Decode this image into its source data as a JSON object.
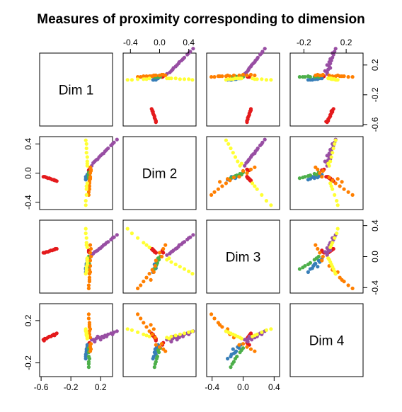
{
  "chart_data": {
    "type": "scatter",
    "title": "Measures of proximity corresponding to dimension",
    "dimensions": [
      "Dim 1",
      "Dim 2",
      "Dim 3",
      "Dim 4"
    ],
    "axes": [
      {
        "range": [
          -0.62,
          0.36
        ],
        "ticks": [
          -0.6,
          -0.2,
          0.2
        ],
        "tick_labels": [
          "-0.6",
          "-0.2",
          "0.2"
        ]
      },
      {
        "range": [
          -0.5,
          0.5
        ],
        "ticks": [
          -0.4,
          0.0,
          0.4
        ],
        "tick_labels": [
          "-0.4",
          "0.0",
          "0.4"
        ]
      },
      {
        "range": [
          -0.47,
          0.47
        ],
        "ticks": [
          -0.4,
          0.0,
          0.4
        ],
        "tick_labels": [
          "-0.4",
          "0.0",
          "0.4"
        ]
      },
      {
        "range": [
          -0.33,
          0.36
        ],
        "ticks": [
          -0.2,
          0.2
        ],
        "tick_labels": [
          "-0.2",
          "0.2"
        ]
      }
    ],
    "series": [
      {
        "color": "#E41A1C",
        "points": [
          [
            -0.57,
            -0.05,
            0.05,
            0.02
          ],
          [
            -0.55,
            -0.05,
            0.05,
            0.03
          ],
          [
            -0.53,
            -0.06,
            0.06,
            0.03
          ],
          [
            -0.51,
            -0.07,
            0.06,
            0.04
          ],
          [
            -0.49,
            -0.07,
            0.07,
            0.05
          ],
          [
            -0.47,
            -0.08,
            0.08,
            0.05
          ],
          [
            -0.45,
            -0.09,
            0.08,
            0.06
          ],
          [
            -0.43,
            -0.09,
            0.09,
            0.07
          ],
          [
            -0.41,
            -0.1,
            0.1,
            0.07
          ],
          [
            -0.39,
            -0.11,
            0.1,
            0.08
          ],
          [
            -0.56,
            -0.05,
            0.05,
            0.01
          ],
          [
            -0.42,
            -0.1,
            0.09,
            0.06
          ],
          [
            0.04,
            0.03,
            0.06,
            -0.02
          ],
          [
            0.05,
            0.05,
            0.05,
            -0.01
          ],
          [
            0.04,
            0.04,
            0.08,
            -0.03
          ]
        ]
      },
      {
        "color": "#377EB8",
        "points": [
          [
            0.02,
            -0.02,
            -0.03,
            -0.03
          ],
          [
            0.02,
            -0.03,
            -0.05,
            -0.06
          ],
          [
            0.01,
            -0.05,
            -0.09,
            -0.09
          ],
          [
            0.01,
            -0.06,
            -0.12,
            -0.11
          ],
          [
            0.0,
            -0.08,
            -0.16,
            -0.14
          ],
          [
            0.0,
            -0.09,
            -0.2,
            -0.16
          ],
          [
            0.01,
            -0.06,
            -0.13,
            -0.07
          ],
          [
            0.02,
            -0.04,
            -0.07,
            -0.05
          ],
          [
            0.01,
            -0.07,
            -0.1,
            -0.1
          ],
          [
            0.0,
            -0.05,
            -0.15,
            -0.12
          ]
        ]
      },
      {
        "color": "#4DAF4A",
        "points": [
          [
            0.04,
            0.01,
            0.0,
            -0.06
          ],
          [
            0.04,
            -0.01,
            -0.04,
            -0.1
          ],
          [
            0.04,
            -0.03,
            -0.08,
            -0.14
          ],
          [
            0.04,
            -0.05,
            -0.12,
            -0.19
          ],
          [
            0.04,
            -0.07,
            -0.16,
            -0.24
          ],
          [
            0.05,
            -0.02,
            -0.02,
            -0.08
          ],
          [
            0.05,
            -0.04,
            -0.1,
            -0.16
          ],
          [
            0.04,
            -0.06,
            -0.14,
            -0.21
          ]
        ]
      },
      {
        "color": "#984EA3",
        "points": [
          [
            0.08,
            0.1,
            0.02,
            0.02
          ],
          [
            0.1,
            0.14,
            0.04,
            0.02
          ],
          [
            0.14,
            0.18,
            0.07,
            0.03
          ],
          [
            0.18,
            0.22,
            0.1,
            0.04
          ],
          [
            0.22,
            0.26,
            0.13,
            0.05
          ],
          [
            0.26,
            0.3,
            0.16,
            0.06
          ],
          [
            0.3,
            0.34,
            0.19,
            0.07
          ],
          [
            0.34,
            0.38,
            0.22,
            0.08
          ],
          [
            0.38,
            0.42,
            0.25,
            0.09
          ],
          [
            0.42,
            0.46,
            0.28,
            0.1
          ],
          [
            0.12,
            0.16,
            0.06,
            0.0
          ],
          [
            0.2,
            0.24,
            0.11,
            0.02
          ],
          [
            0.28,
            0.32,
            0.18,
            0.05
          ],
          [
            0.36,
            0.4,
            0.24,
            0.07
          ],
          [
            0.16,
            0.19,
            0.08,
            0.05
          ],
          [
            0.24,
            0.27,
            0.15,
            0.04
          ]
        ]
      },
      {
        "color": "#FF7F00",
        "points": [
          [
            0.06,
            -0.06,
            -0.12,
            0.04
          ],
          [
            0.05,
            -0.1,
            -0.17,
            0.07
          ],
          [
            0.05,
            -0.14,
            -0.22,
            0.1
          ],
          [
            0.05,
            -0.18,
            -0.27,
            0.14
          ],
          [
            0.05,
            -0.22,
            -0.32,
            0.18
          ],
          [
            0.04,
            -0.26,
            -0.37,
            0.22
          ],
          [
            0.04,
            -0.3,
            -0.41,
            0.26
          ],
          [
            0.06,
            -0.05,
            -0.05,
            -0.03
          ],
          [
            0.06,
            0.0,
            0.05,
            -0.05
          ],
          [
            0.07,
            0.05,
            0.1,
            -0.07
          ],
          [
            0.06,
            0.08,
            0.15,
            -0.09
          ],
          [
            0.06,
            -0.08,
            -0.2,
            0.12
          ],
          [
            0.05,
            -0.12,
            -0.3,
            0.16
          ],
          [
            0.07,
            0.03,
            0.0,
            -0.02
          ]
        ]
      },
      {
        "color": "#FFFF33",
        "points": [
          [
            0.02,
            0.1,
            -0.04,
            0.04
          ],
          [
            0.02,
            0.16,
            -0.07,
            0.05
          ],
          [
            0.02,
            0.22,
            -0.1,
            0.06
          ],
          [
            0.01,
            0.28,
            -0.13,
            0.07
          ],
          [
            0.01,
            0.34,
            -0.16,
            0.08
          ],
          [
            0.01,
            0.4,
            -0.19,
            0.09
          ],
          [
            0.0,
            0.45,
            -0.22,
            0.1
          ],
          [
            0.02,
            -0.14,
            0.12,
            0.05
          ],
          [
            0.01,
            -0.22,
            0.18,
            0.07
          ],
          [
            0.01,
            -0.3,
            0.24,
            0.09
          ],
          [
            0.0,
            -0.38,
            0.3,
            0.11
          ],
          [
            0.0,
            -0.44,
            0.36,
            0.12
          ],
          [
            0.02,
            0.13,
            -0.02,
            0.03
          ],
          [
            0.01,
            -0.18,
            0.15,
            0.06
          ]
        ]
      }
    ]
  }
}
